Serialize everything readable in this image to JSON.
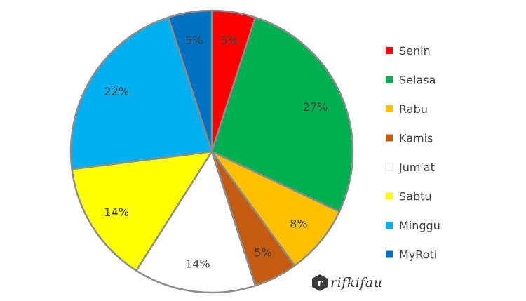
{
  "chart_data": {
    "type": "pie",
    "title": "",
    "categories": [
      "Senin",
      "Selasa",
      "Rabu",
      "Kamis",
      "Jum'at",
      "Sabtu",
      "Minggu",
      "MyRoti"
    ],
    "values": [
      5,
      27,
      8,
      5,
      14,
      14,
      22,
      5
    ],
    "labels": [
      "5%",
      "27%",
      "8%",
      "5%",
      "14%",
      "14%",
      "22%",
      "5%"
    ],
    "colors": [
      "#FF0000",
      "#00B050",
      "#FFC000",
      "#C55A11",
      "#FFFFFF",
      "#FFFF00",
      "#00B0F0",
      "#0070C0"
    ],
    "legend_position": "right",
    "start_angle_deg": 0,
    "direction": "clockwise"
  },
  "watermark": {
    "text": "rifkifau",
    "logo_letter": "r"
  }
}
